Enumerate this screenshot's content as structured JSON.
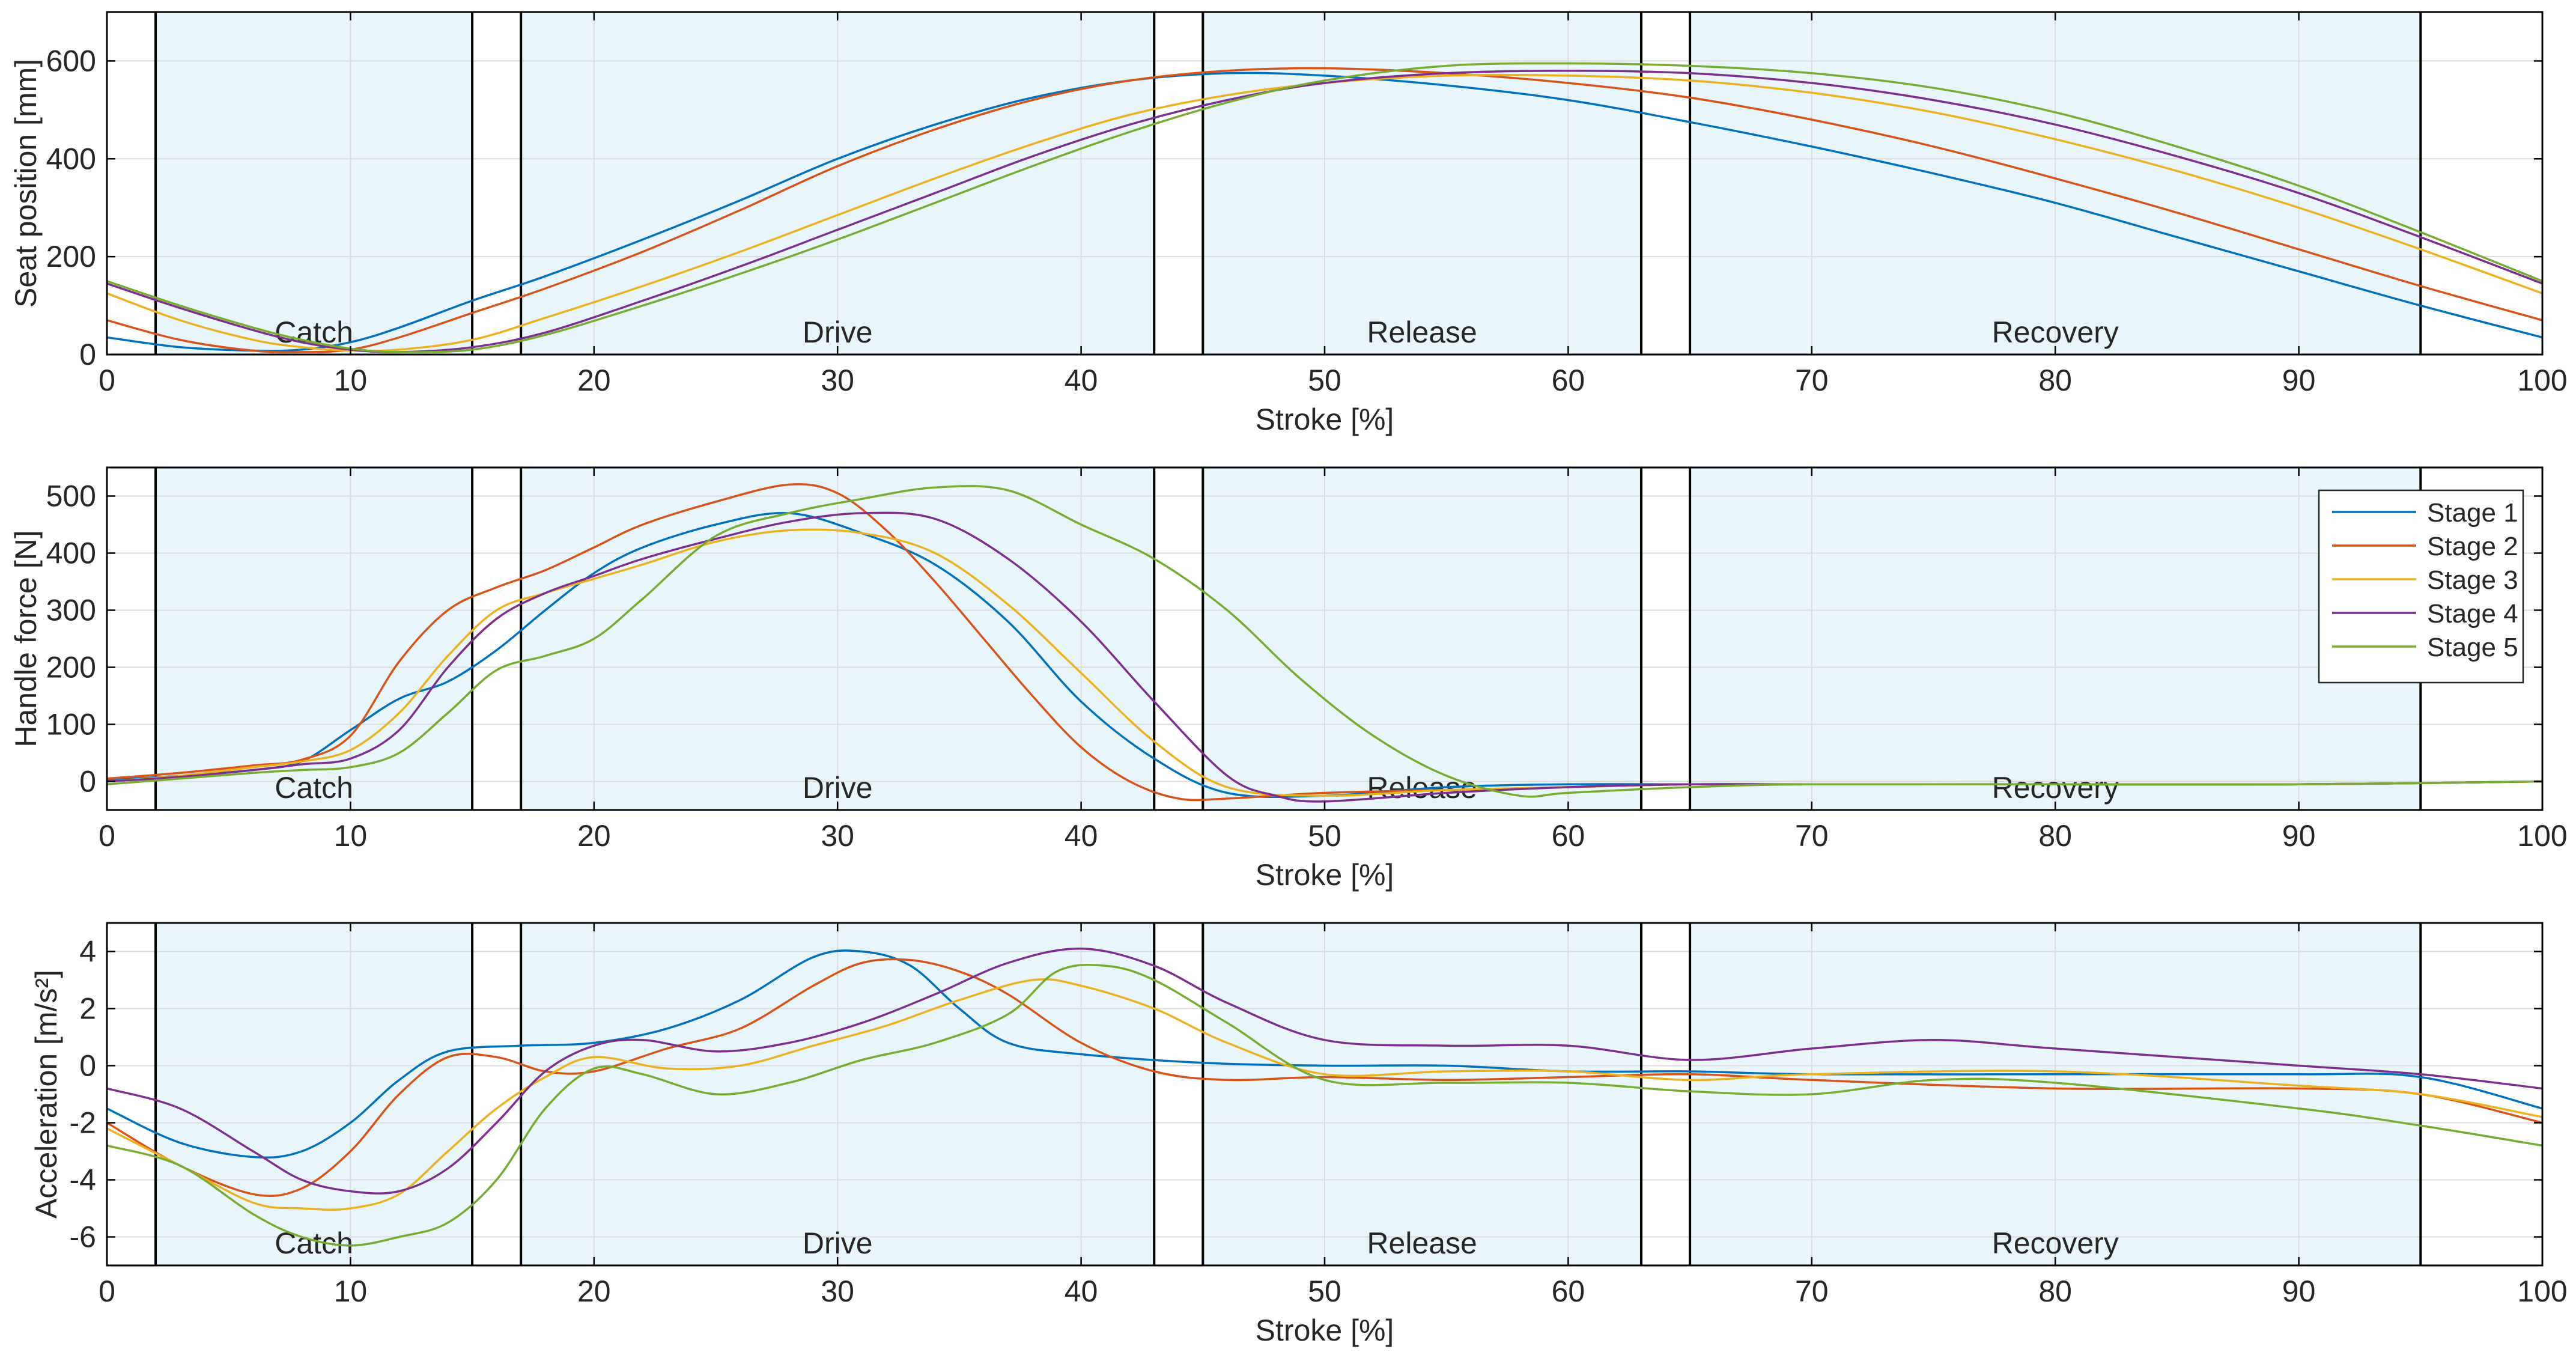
{
  "colors": {
    "stage1": "#0072BD",
    "stage2": "#D95319",
    "stage3": "#EDB120",
    "stage4": "#7E2F8E",
    "stage5": "#77AC30",
    "phase_fill": "#E8F6FB",
    "grid": "#DBDBDB",
    "axis": "#000000"
  },
  "chart_data": [
    {
      "type": "line",
      "id": "seat",
      "title": "",
      "xlabel": "Stroke [%]",
      "ylabel": "Seat position [mm]",
      "xlim": [
        0,
        100
      ],
      "ylim": [
        0,
        700
      ],
      "xticks": [
        0,
        10,
        20,
        30,
        40,
        50,
        60,
        70,
        80,
        90,
        100
      ],
      "yticks": [
        0,
        200,
        400,
        600
      ],
      "grid": true,
      "legend": null,
      "phases": [
        {
          "label": "Catch",
          "start": 2,
          "end": 15
        },
        {
          "label": "Drive",
          "start": 17,
          "end": 43
        },
        {
          "label": "Release",
          "start": 45,
          "end": 63
        },
        {
          "label": "Recovery",
          "start": 65,
          "end": 95
        }
      ],
      "series": [
        {
          "name": "Stage 1",
          "x": [
            0,
            3,
            6,
            8,
            10,
            12,
            15,
            18,
            22,
            26,
            30,
            34,
            38,
            42,
            46,
            50,
            55,
            60,
            65,
            70,
            75,
            80,
            85,
            90,
            95,
            100
          ],
          "y": [
            35,
            15,
            8,
            10,
            25,
            55,
            110,
            160,
            235,
            315,
            400,
            470,
            525,
            560,
            575,
            570,
            550,
            520,
            475,
            425,
            370,
            310,
            240,
            170,
            100,
            35
          ]
        },
        {
          "name": "Stage 2",
          "x": [
            0,
            3,
            6,
            8,
            10,
            12,
            15,
            18,
            22,
            26,
            30,
            34,
            38,
            42,
            46,
            50,
            55,
            60,
            65,
            70,
            75,
            80,
            85,
            90,
            95,
            100
          ],
          "y": [
            70,
            30,
            8,
            5,
            10,
            35,
            85,
            135,
            210,
            295,
            385,
            460,
            520,
            560,
            580,
            585,
            575,
            555,
            525,
            480,
            425,
            360,
            290,
            215,
            140,
            70
          ]
        },
        {
          "name": "Stage 3",
          "x": [
            0,
            3,
            6,
            8,
            10,
            12,
            15,
            18,
            22,
            26,
            30,
            34,
            38,
            42,
            46,
            50,
            55,
            60,
            65,
            70,
            75,
            80,
            85,
            90,
            95,
            100
          ],
          "y": [
            125,
            70,
            30,
            15,
            8,
            10,
            30,
            75,
            140,
            210,
            285,
            360,
            430,
            490,
            530,
            555,
            570,
            570,
            560,
            535,
            495,
            440,
            375,
            300,
            215,
            125
          ]
        },
        {
          "name": "Stage 4",
          "x": [
            0,
            3,
            6,
            8,
            10,
            12,
            15,
            18,
            22,
            26,
            30,
            34,
            38,
            42,
            46,
            50,
            55,
            60,
            65,
            70,
            75,
            80,
            85,
            90,
            95,
            100
          ],
          "y": [
            145,
            95,
            50,
            25,
            10,
            5,
            15,
            45,
            110,
            180,
            255,
            330,
            405,
            470,
            520,
            555,
            575,
            580,
            575,
            555,
            520,
            470,
            405,
            330,
            240,
            145
          ]
        },
        {
          "name": "Stage 5",
          "x": [
            0,
            3,
            6,
            8,
            10,
            12,
            15,
            18,
            22,
            26,
            30,
            34,
            38,
            42,
            46,
            50,
            55,
            60,
            65,
            70,
            75,
            80,
            85,
            90,
            95,
            100
          ],
          "y": [
            150,
            100,
            55,
            30,
            12,
            5,
            10,
            40,
            100,
            165,
            235,
            310,
            385,
            455,
            515,
            560,
            590,
            595,
            590,
            575,
            545,
            495,
            425,
            345,
            250,
            150
          ]
        }
      ]
    },
    {
      "type": "line",
      "id": "force",
      "title": "",
      "xlabel": "Stroke [%]",
      "ylabel": "Handle force [N]",
      "xlim": [
        0,
        100
      ],
      "ylim": [
        -50,
        550
      ],
      "xticks": [
        0,
        10,
        20,
        30,
        40,
        50,
        60,
        70,
        80,
        90,
        100
      ],
      "yticks": [
        0,
        100,
        200,
        300,
        400,
        500
      ],
      "grid": true,
      "legend": "top-right",
      "phases": [
        {
          "label": "Catch",
          "start": 2,
          "end": 15
        },
        {
          "label": "Drive",
          "start": 17,
          "end": 43
        },
        {
          "label": "Release",
          "start": 45,
          "end": 63
        },
        {
          "label": "Recovery",
          "start": 65,
          "end": 95
        }
      ],
      "series": [
        {
          "name": "Stage 1",
          "x": [
            0,
            3,
            6,
            8,
            10,
            12,
            14,
            16,
            18,
            20,
            22,
            25,
            28,
            31,
            34,
            37,
            40,
            43,
            46,
            50,
            55,
            60,
            65,
            70,
            80,
            90,
            100
          ],
          "y": [
            2,
            10,
            20,
            35,
            90,
            145,
            175,
            230,
            300,
            365,
            410,
            450,
            470,
            435,
            380,
            280,
            140,
            40,
            -20,
            -25,
            -10,
            -5,
            -5,
            -5,
            -5,
            -5,
            0
          ]
        },
        {
          "name": "Stage 2",
          "x": [
            0,
            3,
            6,
            8,
            10,
            12,
            14,
            16,
            18,
            20,
            22,
            25,
            28,
            30,
            32,
            34,
            36,
            38,
            40,
            42,
            44,
            46,
            50,
            55,
            60,
            65,
            70,
            80,
            90,
            100
          ],
          "y": [
            5,
            15,
            28,
            38,
            80,
            210,
            300,
            340,
            370,
            410,
            450,
            490,
            520,
            505,
            440,
            350,
            250,
            150,
            60,
            0,
            -30,
            -30,
            -20,
            -15,
            -10,
            -5,
            -5,
            -5,
            -5,
            0
          ]
        },
        {
          "name": "Stage 3",
          "x": [
            0,
            3,
            6,
            8,
            10,
            12,
            14,
            16,
            18,
            20,
            22,
            25,
            28,
            31,
            34,
            37,
            40,
            43,
            46,
            50,
            55,
            60,
            65,
            70,
            80,
            90,
            100
          ],
          "y": [
            0,
            10,
            25,
            35,
            55,
            120,
            220,
            300,
            330,
            355,
            380,
            420,
            440,
            435,
            400,
            310,
            190,
            70,
            -10,
            -25,
            -15,
            -10,
            -5,
            -5,
            -5,
            -5,
            0
          ]
        },
        {
          "name": "Stage 4",
          "x": [
            0,
            3,
            6,
            8,
            10,
            12,
            14,
            16,
            18,
            20,
            22,
            25,
            28,
            31,
            34,
            37,
            40,
            43,
            46,
            48,
            50,
            55,
            60,
            65,
            70,
            80,
            90,
            100
          ],
          "y": [
            0,
            8,
            20,
            30,
            40,
            90,
            200,
            285,
            330,
            360,
            390,
            425,
            455,
            470,
            460,
            390,
            280,
            140,
            10,
            -25,
            -35,
            -20,
            -10,
            -5,
            -5,
            -5,
            -5,
            0
          ]
        },
        {
          "name": "Stage 5",
          "x": [
            0,
            3,
            6,
            8,
            10,
            12,
            14,
            16,
            18,
            20,
            22,
            25,
            28,
            31,
            34,
            37,
            40,
            43,
            46,
            49,
            52,
            55,
            58,
            60,
            65,
            70,
            80,
            90,
            100
          ],
          "y": [
            -5,
            5,
            15,
            20,
            25,
            50,
            120,
            195,
            220,
            250,
            320,
            430,
            470,
            495,
            515,
            510,
            450,
            390,
            300,
            180,
            80,
            10,
            -25,
            -20,
            -10,
            -5,
            -5,
            -5,
            0
          ]
        }
      ]
    },
    {
      "type": "line",
      "id": "accel",
      "title": "",
      "xlabel": "Stroke [%]",
      "ylabel": "Acceleration [m/s²]",
      "xlim": [
        0,
        100
      ],
      "ylim": [
        -7,
        5
      ],
      "xticks": [
        0,
        10,
        20,
        30,
        40,
        50,
        60,
        70,
        80,
        90,
        100
      ],
      "yticks": [
        -6,
        -4,
        -2,
        0,
        2,
        4
      ],
      "grid": true,
      "legend": null,
      "phases": [
        {
          "label": "Catch",
          "start": 2,
          "end": 15
        },
        {
          "label": "Drive",
          "start": 17,
          "end": 43
        },
        {
          "label": "Release",
          "start": 45,
          "end": 63
        },
        {
          "label": "Recovery",
          "start": 65,
          "end": 95
        }
      ],
      "series": [
        {
          "name": "Stage 1",
          "x": [
            0,
            3,
            6,
            8,
            10,
            12,
            14,
            17,
            20,
            23,
            26,
            29,
            31,
            33,
            35,
            37,
            40,
            45,
            50,
            55,
            60,
            65,
            70,
            80,
            90,
            95,
            100
          ],
          "y": [
            -1.5,
            -2.7,
            -3.2,
            -3.0,
            -2.0,
            -0.5,
            0.5,
            0.7,
            0.8,
            1.3,
            2.3,
            3.8,
            4.0,
            3.5,
            2.0,
            0.8,
            0.4,
            0.1,
            0.0,
            0.0,
            -0.2,
            -0.2,
            -0.3,
            -0.3,
            -0.3,
            -0.4,
            -1.5
          ]
        },
        {
          "name": "Stage 2",
          "x": [
            0,
            3,
            6,
            8,
            10,
            12,
            14,
            16,
            18,
            20,
            23,
            26,
            29,
            31,
            33,
            35,
            37,
            40,
            43,
            46,
            50,
            55,
            60,
            65,
            70,
            80,
            90,
            95,
            100
          ],
          "y": [
            -2.0,
            -3.5,
            -4.5,
            -4.3,
            -3.0,
            -1.0,
            0.3,
            0.3,
            -0.2,
            -0.2,
            0.6,
            1.3,
            2.8,
            3.6,
            3.7,
            3.3,
            2.5,
            0.8,
            -0.2,
            -0.5,
            -0.4,
            -0.5,
            -0.4,
            -0.3,
            -0.5,
            -0.8,
            -0.8,
            -1.0,
            -2.0
          ]
        },
        {
          "name": "Stage 3",
          "x": [
            0,
            3,
            6,
            8,
            10,
            12,
            14,
            16,
            18,
            20,
            23,
            26,
            29,
            32,
            35,
            38,
            40,
            43,
            46,
            50,
            55,
            60,
            65,
            70,
            80,
            90,
            95,
            100
          ],
          "y": [
            -2.2,
            -3.5,
            -4.8,
            -5.0,
            -5.0,
            -4.5,
            -3.0,
            -1.5,
            -0.4,
            0.3,
            -0.1,
            0.0,
            0.7,
            1.4,
            2.3,
            3.0,
            2.8,
            2.0,
            0.8,
            -0.3,
            -0.2,
            -0.2,
            -0.5,
            -0.3,
            -0.2,
            -0.7,
            -1.0,
            -1.8
          ]
        },
        {
          "name": "Stage 4",
          "x": [
            0,
            3,
            6,
            8,
            10,
            12,
            14,
            16,
            18,
            20,
            22,
            25,
            28,
            31,
            34,
            37,
            40,
            43,
            46,
            50,
            55,
            60,
            65,
            70,
            75,
            80,
            90,
            95,
            100
          ],
          "y": [
            -0.8,
            -1.5,
            -3.0,
            -4.0,
            -4.4,
            -4.4,
            -3.6,
            -2.0,
            -0.2,
            0.7,
            0.9,
            0.5,
            0.8,
            1.5,
            2.5,
            3.6,
            4.1,
            3.5,
            2.2,
            0.9,
            0.7,
            0.7,
            0.2,
            0.6,
            0.9,
            0.6,
            0.0,
            -0.3,
            -0.8
          ]
        },
        {
          "name": "Stage 5",
          "x": [
            0,
            3,
            6,
            8,
            10,
            12,
            14,
            16,
            18,
            20,
            22,
            25,
            28,
            31,
            34,
            37,
            39,
            41,
            43,
            46,
            50,
            55,
            60,
            65,
            70,
            75,
            80,
            90,
            95,
            100
          ],
          "y": [
            -2.8,
            -3.5,
            -5.2,
            -6.0,
            -6.3,
            -6.0,
            -5.5,
            -4.0,
            -1.5,
            -0.1,
            -0.3,
            -1.0,
            -0.6,
            0.2,
            0.8,
            1.8,
            3.3,
            3.5,
            3.0,
            1.5,
            -0.5,
            -0.6,
            -0.6,
            -0.9,
            -1.0,
            -0.5,
            -0.6,
            -1.5,
            -2.1,
            -2.8
          ]
        }
      ]
    }
  ]
}
